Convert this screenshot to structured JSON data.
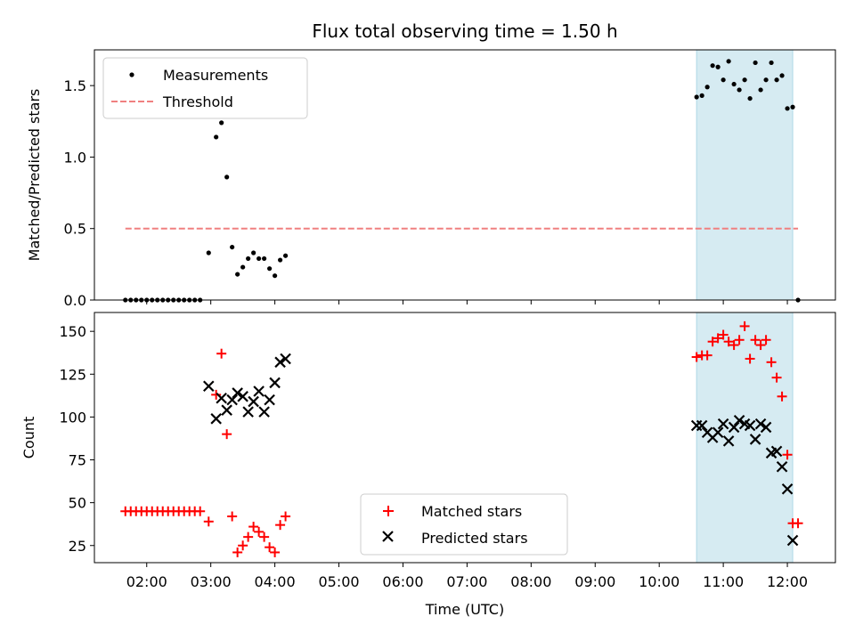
{
  "figure": {
    "title": "Flux total observing time = 1.50 h",
    "xlabel": "Time (UTC)",
    "x_ticks": [
      "02:00",
      "03:00",
      "04:00",
      "05:00",
      "06:00",
      "07:00",
      "08:00",
      "09:00",
      "10:00",
      "11:00",
      "12:00"
    ],
    "colors": {
      "threshold": "#f08080",
      "shade": "#add8e6",
      "matched": "#ff0000",
      "predicted": "#000000",
      "measurement": "#000000"
    }
  },
  "chart_data": [
    {
      "type": "scatter",
      "ylabel": "Matched/Predicted stars",
      "xlim": [
        "01:11",
        "12:45"
      ],
      "ylim": [
        0,
        1.75
      ],
      "y_ticks": [
        "0.0",
        "0.5",
        "1.0",
        "1.5"
      ],
      "legend_position": "upper-left",
      "shaded_interval": [
        "10:35",
        "12:05"
      ],
      "series": [
        {
          "name": "Measurements",
          "marker": "dot",
          "points": [
            [
              "01:40",
              0
            ],
            [
              "01:45",
              0
            ],
            [
              "01:50",
              0
            ],
            [
              "01:55",
              0
            ],
            [
              "02:00",
              0
            ],
            [
              "02:05",
              0
            ],
            [
              "02:10",
              0
            ],
            [
              "02:15",
              0
            ],
            [
              "02:20",
              0
            ],
            [
              "02:25",
              0
            ],
            [
              "02:30",
              0
            ],
            [
              "02:35",
              0
            ],
            [
              "02:40",
              0
            ],
            [
              "02:45",
              0
            ],
            [
              "02:50",
              0
            ],
            [
              "02:58",
              0.33
            ],
            [
              "03:05",
              1.14
            ],
            [
              "03:10",
              1.24
            ],
            [
              "03:15",
              0.86
            ],
            [
              "03:20",
              0.37
            ],
            [
              "03:25",
              0.18
            ],
            [
              "03:30",
              0.23
            ],
            [
              "03:35",
              0.29
            ],
            [
              "03:40",
              0.33
            ],
            [
              "03:45",
              0.29
            ],
            [
              "03:50",
              0.29
            ],
            [
              "03:55",
              0.22
            ],
            [
              "04:00",
              0.17
            ],
            [
              "04:05",
              0.28
            ],
            [
              "04:10",
              0.31
            ],
            [
              "10:35",
              1.42
            ],
            [
              "10:40",
              1.43
            ],
            [
              "10:45",
              1.49
            ],
            [
              "10:50",
              1.64
            ],
            [
              "10:55",
              1.63
            ],
            [
              "11:00",
              1.54
            ],
            [
              "11:05",
              1.67
            ],
            [
              "11:10",
              1.51
            ],
            [
              "11:15",
              1.47
            ],
            [
              "11:20",
              1.54
            ],
            [
              "11:25",
              1.41
            ],
            [
              "11:30",
              1.66
            ],
            [
              "11:35",
              1.47
            ],
            [
              "11:40",
              1.54
            ],
            [
              "11:45",
              1.66
            ],
            [
              "11:50",
              1.54
            ],
            [
              "11:55",
              1.57
            ],
            [
              "12:00",
              1.34
            ],
            [
              "12:05",
              1.35
            ],
            [
              "12:10",
              0
            ]
          ]
        },
        {
          "name": "Threshold",
          "marker": "dashed-line",
          "points": [
            [
              "01:40",
              0.5
            ],
            [
              "12:10",
              0.5
            ]
          ]
        }
      ]
    },
    {
      "type": "scatter",
      "ylabel": "Count",
      "xlim": [
        "01:11",
        "12:45"
      ],
      "ylim": [
        15,
        161
      ],
      "y_ticks": [
        "25",
        "50",
        "75",
        "100",
        "125",
        "150"
      ],
      "legend_position": "lower-center",
      "shaded_interval": [
        "10:35",
        "12:05"
      ],
      "series": [
        {
          "name": "Matched stars",
          "marker": "plus",
          "points": [
            [
              "01:40",
              45
            ],
            [
              "01:45",
              45
            ],
            [
              "01:50",
              45
            ],
            [
              "01:55",
              45
            ],
            [
              "02:00",
              45
            ],
            [
              "02:05",
              45
            ],
            [
              "02:10",
              45
            ],
            [
              "02:15",
              45
            ],
            [
              "02:20",
              45
            ],
            [
              "02:25",
              45
            ],
            [
              "02:30",
              45
            ],
            [
              "02:35",
              45
            ],
            [
              "02:40",
              45
            ],
            [
              "02:45",
              45
            ],
            [
              "02:50",
              45
            ],
            [
              "02:58",
              39
            ],
            [
              "03:05",
              113
            ],
            [
              "03:10",
              137
            ],
            [
              "03:15",
              90
            ],
            [
              "03:20",
              42
            ],
            [
              "03:25",
              21
            ],
            [
              "03:30",
              25
            ],
            [
              "03:35",
              30
            ],
            [
              "03:40",
              36
            ],
            [
              "03:45",
              33
            ],
            [
              "03:50",
              30
            ],
            [
              "03:55",
              24
            ],
            [
              "04:00",
              21
            ],
            [
              "04:05",
              37
            ],
            [
              "04:10",
              42
            ],
            [
              "10:35",
              135
            ],
            [
              "10:40",
              136
            ],
            [
              "10:45",
              136
            ],
            [
              "10:50",
              144
            ],
            [
              "10:55",
              146
            ],
            [
              "11:00",
              148
            ],
            [
              "11:05",
              144
            ],
            [
              "11:10",
              142
            ],
            [
              "11:15",
              145
            ],
            [
              "11:20",
              153
            ],
            [
              "11:25",
              134
            ],
            [
              "11:30",
              145
            ],
            [
              "11:35",
              142
            ],
            [
              "11:40",
              145
            ],
            [
              "11:45",
              132
            ],
            [
              "11:50",
              123
            ],
            [
              "11:55",
              112
            ],
            [
              "12:00",
              78
            ],
            [
              "12:05",
              38
            ],
            [
              "12:10",
              38
            ]
          ]
        },
        {
          "name": "Predicted stars",
          "marker": "x",
          "points": [
            [
              "02:58",
              118
            ],
            [
              "03:05",
              99
            ],
            [
              "03:10",
              111
            ],
            [
              "03:15",
              104
            ],
            [
              "03:20",
              110
            ],
            [
              "03:25",
              114
            ],
            [
              "03:30",
              112
            ],
            [
              "03:35",
              103
            ],
            [
              "03:40",
              109
            ],
            [
              "03:45",
              115
            ],
            [
              "03:50",
              103
            ],
            [
              "03:55",
              110
            ],
            [
              "04:00",
              120
            ],
            [
              "04:05",
              132
            ],
            [
              "04:10",
              134
            ],
            [
              "10:35",
              95
            ],
            [
              "10:40",
              95
            ],
            [
              "10:45",
              91
            ],
            [
              "10:50",
              88
            ],
            [
              "10:55",
              91
            ],
            [
              "11:00",
              96
            ],
            [
              "11:05",
              86
            ],
            [
              "11:10",
              94
            ],
            [
              "11:15",
              98
            ],
            [
              "11:20",
              96
            ],
            [
              "11:25",
              95
            ],
            [
              "11:30",
              87
            ],
            [
              "11:35",
              96
            ],
            [
              "11:40",
              94
            ],
            [
              "11:45",
              79
            ],
            [
              "11:50",
              80
            ],
            [
              "11:55",
              71
            ],
            [
              "12:00",
              58
            ],
            [
              "12:05",
              28
            ]
          ]
        }
      ]
    }
  ]
}
